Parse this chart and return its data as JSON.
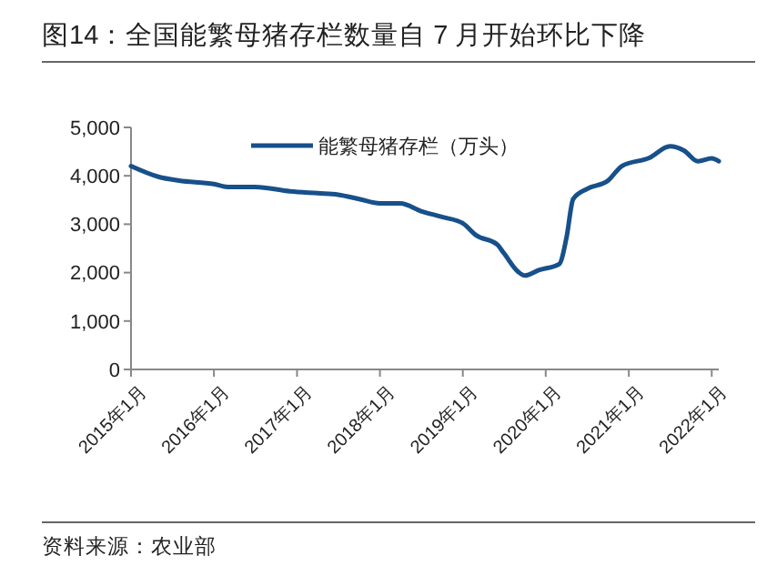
{
  "chart_data": {
    "type": "line",
    "title": "图14：全国能繁母猪存栏数量自 7 月开始环比下降",
    "annotations": [
      "资料来源：农业部"
    ],
    "x": [
      "2015-01",
      "2015-05",
      "2015-08",
      "2016-01",
      "2016-03",
      "2016-07",
      "2016-12",
      "2017-04",
      "2017-07",
      "2017-10",
      "2018-01",
      "2018-04",
      "2018-07",
      "2018-10",
      "2019-01",
      "2019-03",
      "2019-06",
      "2019-07",
      "2019-09",
      "2019-10",
      "2019-12",
      "2020-03",
      "2020-04",
      "2020-05",
      "2020-07",
      "2020-10",
      "2020-12",
      "2021-04",
      "2021-07",
      "2021-09",
      "2021-11",
      "2022-01",
      "2022-02"
    ],
    "series": [
      {
        "name": "能繁母猪存栏（万头）",
        "color": "#17508a",
        "values": [
          4200,
          3980,
          3900,
          3830,
          3770,
          3770,
          3680,
          3640,
          3610,
          3520,
          3430,
          3430,
          3270,
          3150,
          3020,
          2770,
          2580,
          2400,
          2020,
          1940,
          2050,
          2180,
          2710,
          3520,
          3730,
          3900,
          4200,
          4370,
          4610,
          4520,
          4300,
          4360,
          4300
        ]
      }
    ],
    "xlim": [
      "2015-01",
      "2022-02"
    ],
    "xticks": [
      {
        "value": "2015-01",
        "label": "2015年1月"
      },
      {
        "value": "2016-01",
        "label": "2016年1月"
      },
      {
        "value": "2017-01",
        "label": "2017年1月"
      },
      {
        "value": "2018-01",
        "label": "2018年1月"
      },
      {
        "value": "2019-01",
        "label": "2019年1月"
      },
      {
        "value": "2020-01",
        "label": "2020年1月"
      },
      {
        "value": "2021-01",
        "label": "2021年1月"
      },
      {
        "value": "2022-01",
        "label": "2022年1月"
      }
    ],
    "ylim": [
      0,
      5000
    ],
    "yticks": [
      0,
      {
        "value": 1000,
        "label": "1,000"
      },
      {
        "value": 2000,
        "label": "2,000"
      },
      {
        "value": 3000,
        "label": "3,000"
      },
      {
        "value": 4000,
        "label": "4,000"
      },
      {
        "value": 5000,
        "label": "5,000"
      }
    ],
    "legend": "top",
    "grid": false,
    "marker": "none",
    "line_style": "solid"
  }
}
